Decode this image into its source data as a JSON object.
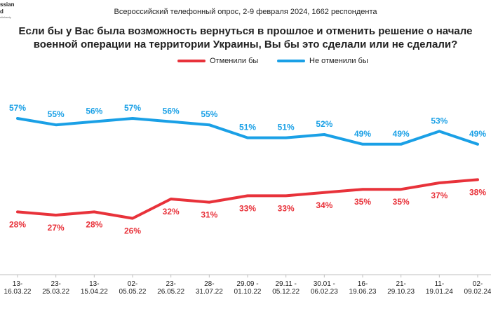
{
  "logo": {
    "line1": "ssian",
    "line2": "d",
    "line3": "ulinkanty"
  },
  "subtitle": "Всероссийский телефонный опрос, 2-9 февраля 2024, 1662 респондента",
  "title": "Если бы у Вас была возможность вернуться в прошлое и отменить решение о начале военной операции на территории Украины, Вы бы это сделали или не сделали?",
  "colors": {
    "red": "#e8323a",
    "blue": "#1aa0e6"
  },
  "chart_data": {
    "type": "line",
    "categories": [
      [
        "13-",
        "16.03.22"
      ],
      [
        "23-",
        "25.03.22"
      ],
      [
        "13-",
        "15.04.22"
      ],
      [
        "02-",
        "05.05.22"
      ],
      [
        "23-",
        "26.05.22"
      ],
      [
        "28-",
        "31.07.22"
      ],
      [
        "29.09 -",
        "01.10.22"
      ],
      [
        "29.11 -",
        "05.12.22"
      ],
      [
        "30.01 -",
        "06.02.23"
      ],
      [
        "16-",
        "19.06.23"
      ],
      [
        "21-",
        "29.10.23"
      ],
      [
        "11-",
        "19.01.24"
      ],
      [
        "02-",
        "09.02.24"
      ]
    ],
    "series": [
      {
        "name": "Отменили бы",
        "color": "#e8323a",
        "values": [
          28,
          27,
          28,
          26,
          32,
          31,
          33,
          33,
          34,
          35,
          35,
          37,
          38
        ]
      },
      {
        "name": "Не отменили бы",
        "color": "#1aa0e6",
        "values": [
          57,
          55,
          56,
          57,
          56,
          55,
          51,
          51,
          52,
          49,
          49,
          53,
          49
        ]
      }
    ],
    "value_suffix": "%",
    "legend_position": "top",
    "grid": false
  }
}
